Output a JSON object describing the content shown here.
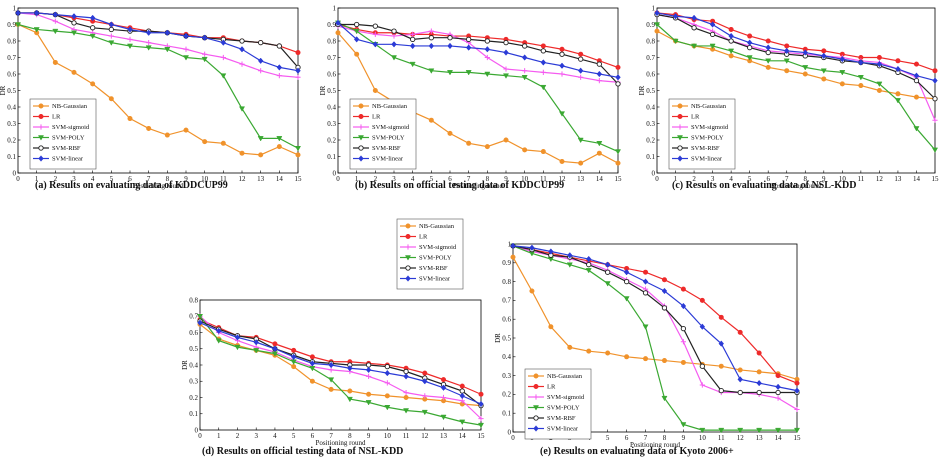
{
  "figure": {
    "colors": {
      "NB-Gaussian": "#f0922b",
      "LR": "#ee2a2a",
      "SVM-sigmoid": "#f55bf0",
      "SVM-POLY": "#3aa832",
      "SVM-RBF": "#222222",
      "SVM-linear": "#2b3bd6"
    },
    "markers": {
      "NB-Gaussian": "circle",
      "LR": "circle",
      "SVM-sigmoid": "plus",
      "SVM-POLY": "triangle-down",
      "SVM-RBF": "circle-open",
      "SVM-linear": "diamond"
    }
  },
  "chart_data": [
    {
      "type": "line",
      "caption": "(a) Results on evaluating data of KDDCUP99",
      "xlabel": "Positioning round",
      "ylabel": "DR",
      "x": [
        0,
        1,
        2,
        3,
        4,
        5,
        6,
        7,
        8,
        9,
        10,
        11,
        12,
        13,
        14,
        15
      ],
      "xlim": [
        0,
        15
      ],
      "ylim": [
        0,
        1
      ],
      "yticks": [
        "0",
        "0.1",
        "0.2",
        "0.3",
        "0.4",
        "0.5",
        "0.6",
        "0.7",
        "0.8",
        "0.9",
        "1"
      ],
      "legend": "bottom-left",
      "series": [
        {
          "name": "NB-Gaussian",
          "values": [
            0.9,
            0.85,
            0.67,
            0.61,
            0.54,
            0.45,
            0.33,
            0.27,
            0.23,
            0.26,
            0.19,
            0.18,
            0.12,
            0.11,
            0.16,
            0.11
          ]
        },
        {
          "name": "LR",
          "values": [
            0.97,
            0.97,
            0.96,
            0.94,
            0.92,
            0.9,
            0.88,
            0.86,
            0.85,
            0.84,
            0.82,
            0.82,
            0.8,
            0.79,
            0.77,
            0.73
          ]
        },
        {
          "name": "SVM-sigmoid",
          "values": [
            0.97,
            0.96,
            0.92,
            0.87,
            0.85,
            0.83,
            0.81,
            0.79,
            0.77,
            0.75,
            0.72,
            0.7,
            0.66,
            0.62,
            0.59,
            0.58
          ]
        },
        {
          "name": "SVM-POLY",
          "values": [
            0.9,
            0.87,
            0.86,
            0.85,
            0.83,
            0.79,
            0.77,
            0.76,
            0.75,
            0.7,
            0.69,
            0.59,
            0.39,
            0.21,
            0.21,
            0.15
          ]
        },
        {
          "name": "SVM-RBF",
          "values": [
            0.97,
            0.97,
            0.96,
            0.91,
            0.88,
            0.87,
            0.86,
            0.86,
            0.85,
            0.83,
            0.82,
            0.81,
            0.8,
            0.79,
            0.77,
            0.64
          ]
        },
        {
          "name": "SVM-linear",
          "values": [
            0.97,
            0.97,
            0.96,
            0.95,
            0.94,
            0.9,
            0.87,
            0.85,
            0.85,
            0.83,
            0.82,
            0.79,
            0.75,
            0.68,
            0.64,
            0.62
          ]
        }
      ]
    },
    {
      "type": "line",
      "caption": "(b) Results on official testing data of KDDCUP99",
      "xlabel": "Positioning round",
      "ylabel": "DR",
      "x": [
        0,
        1,
        2,
        3,
        4,
        5,
        6,
        7,
        8,
        9,
        10,
        11,
        12,
        13,
        14,
        15
      ],
      "xlim": [
        0,
        15
      ],
      "ylim": [
        0,
        1
      ],
      "yticks": [
        "0",
        "0.1",
        "0.2",
        "0.3",
        "0.4",
        "0.5",
        "0.6",
        "0.7",
        "0.8",
        "0.9",
        "1"
      ],
      "legend": "bottom-left",
      "series": [
        {
          "name": "NB-Gaussian",
          "values": [
            0.85,
            0.72,
            0.5,
            0.43,
            0.37,
            0.32,
            0.24,
            0.18,
            0.16,
            0.2,
            0.14,
            0.13,
            0.07,
            0.06,
            0.12,
            0.06
          ]
        },
        {
          "name": "LR",
          "values": [
            0.9,
            0.87,
            0.85,
            0.85,
            0.84,
            0.84,
            0.83,
            0.83,
            0.82,
            0.81,
            0.79,
            0.77,
            0.75,
            0.72,
            0.68,
            0.64
          ]
        },
        {
          "name": "SVM-sigmoid",
          "values": [
            0.89,
            0.86,
            0.84,
            0.83,
            0.84,
            0.86,
            0.84,
            0.79,
            0.7,
            0.63,
            0.62,
            0.61,
            0.6,
            0.58,
            0.56,
            0.55
          ]
        },
        {
          "name": "SVM-POLY",
          "values": [
            0.91,
            0.86,
            0.78,
            0.7,
            0.66,
            0.62,
            0.61,
            0.61,
            0.6,
            0.59,
            0.58,
            0.52,
            0.36,
            0.2,
            0.18,
            0.13
          ]
        },
        {
          "name": "SVM-RBF",
          "values": [
            0.9,
            0.9,
            0.89,
            0.86,
            0.81,
            0.82,
            0.82,
            0.81,
            0.8,
            0.79,
            0.77,
            0.74,
            0.72,
            0.69,
            0.66,
            0.54
          ]
        },
        {
          "name": "SVM-linear",
          "values": [
            0.91,
            0.81,
            0.78,
            0.78,
            0.77,
            0.77,
            0.77,
            0.76,
            0.75,
            0.73,
            0.7,
            0.67,
            0.65,
            0.62,
            0.6,
            0.58
          ]
        }
      ]
    },
    {
      "type": "line",
      "caption": "(c) Results on evaluating data of NSL-KDD",
      "xlabel": "Positioning round",
      "ylabel": "DR",
      "x": [
        0,
        1,
        2,
        3,
        4,
        5,
        6,
        7,
        8,
        9,
        10,
        11,
        12,
        13,
        14,
        15
      ],
      "xlim": [
        0,
        15
      ],
      "ylim": [
        0,
        1
      ],
      "yticks": [
        "0",
        "0.1",
        "0.2",
        "0.3",
        "0.4",
        "0.5",
        "0.6",
        "0.7",
        "0.8",
        "0.9",
        "1"
      ],
      "legend": "bottom-left",
      "series": [
        {
          "name": "NB-Gaussian",
          "values": [
            0.86,
            0.8,
            0.77,
            0.75,
            0.71,
            0.68,
            0.64,
            0.62,
            0.6,
            0.57,
            0.54,
            0.53,
            0.5,
            0.48,
            0.46,
            0.45
          ]
        },
        {
          "name": "LR",
          "values": [
            0.97,
            0.96,
            0.93,
            0.92,
            0.87,
            0.83,
            0.8,
            0.77,
            0.75,
            0.74,
            0.72,
            0.7,
            0.7,
            0.68,
            0.66,
            0.62
          ]
        },
        {
          "name": "SVM-sigmoid",
          "values": [
            0.96,
            0.94,
            0.9,
            0.86,
            0.8,
            0.77,
            0.74,
            0.73,
            0.72,
            0.71,
            0.7,
            0.68,
            0.67,
            0.63,
            0.58,
            0.32
          ]
        },
        {
          "name": "SVM-POLY",
          "values": [
            0.9,
            0.8,
            0.77,
            0.77,
            0.74,
            0.7,
            0.68,
            0.68,
            0.64,
            0.62,
            0.61,
            0.58,
            0.54,
            0.44,
            0.27,
            0.14
          ]
        },
        {
          "name": "SVM-RBF",
          "values": [
            0.96,
            0.94,
            0.88,
            0.84,
            0.8,
            0.76,
            0.73,
            0.72,
            0.71,
            0.7,
            0.68,
            0.67,
            0.65,
            0.61,
            0.56,
            0.45
          ]
        },
        {
          "name": "SVM-linear",
          "values": [
            0.97,
            0.95,
            0.94,
            0.9,
            0.83,
            0.79,
            0.76,
            0.74,
            0.73,
            0.71,
            0.69,
            0.67,
            0.66,
            0.63,
            0.59,
            0.56
          ]
        }
      ]
    },
    {
      "type": "line",
      "caption": "(d) Results on official testing data of NSL-KDD",
      "xlabel": "Positioning round",
      "ylabel": "DR",
      "x": [
        0,
        1,
        2,
        3,
        4,
        5,
        6,
        7,
        8,
        9,
        10,
        11,
        12,
        13,
        14,
        15
      ],
      "xlim": [
        0,
        15
      ],
      "ylim": [
        0,
        0.8
      ],
      "yticks": [
        "0",
        "0.1",
        "0.2",
        "0.3",
        "0.4",
        "0.5",
        "0.6",
        "0.7",
        "0.8"
      ],
      "legend": "top-right",
      "series": [
        {
          "name": "NB-Gaussian",
          "values": [
            0.65,
            0.56,
            0.52,
            0.49,
            0.46,
            0.39,
            0.3,
            0.25,
            0.24,
            0.22,
            0.21,
            0.2,
            0.19,
            0.18,
            0.16,
            0.15
          ]
        },
        {
          "name": "LR",
          "values": [
            0.68,
            0.63,
            0.58,
            0.57,
            0.53,
            0.49,
            0.45,
            0.42,
            0.42,
            0.41,
            0.4,
            0.38,
            0.35,
            0.31,
            0.27,
            0.22
          ]
        },
        {
          "name": "SVM-sigmoid",
          "values": [
            0.7,
            0.6,
            0.55,
            0.51,
            0.48,
            0.43,
            0.39,
            0.37,
            0.36,
            0.33,
            0.29,
            0.23,
            0.21,
            0.2,
            0.18,
            0.07
          ]
        },
        {
          "name": "SVM-POLY",
          "values": [
            0.7,
            0.55,
            0.51,
            0.49,
            0.47,
            0.42,
            0.38,
            0.31,
            0.19,
            0.17,
            0.14,
            0.12,
            0.11,
            0.08,
            0.05,
            0.03
          ]
        },
        {
          "name": "SVM-RBF",
          "values": [
            0.67,
            0.62,
            0.58,
            0.56,
            0.5,
            0.46,
            0.42,
            0.41,
            0.4,
            0.4,
            0.39,
            0.36,
            0.32,
            0.28,
            0.24,
            0.15
          ]
        },
        {
          "name": "SVM-linear",
          "values": [
            0.66,
            0.61,
            0.57,
            0.54,
            0.5,
            0.45,
            0.41,
            0.4,
            0.38,
            0.37,
            0.35,
            0.33,
            0.3,
            0.26,
            0.21,
            0.16
          ]
        }
      ]
    },
    {
      "type": "line",
      "caption": "(e) Results on evaluating data of Kyoto 2006+",
      "xlabel": "Positioning round",
      "ylabel": "DR",
      "x": [
        0,
        1,
        2,
        3,
        4,
        5,
        6,
        7,
        8,
        9,
        10,
        11,
        12,
        13,
        14,
        15
      ],
      "xlim": [
        0,
        15
      ],
      "ylim": [
        0,
        1
      ],
      "yticks": [
        "0",
        "0.1",
        "0.2",
        "0.3",
        "0.4",
        "0.5",
        "0.6",
        "0.7",
        "0.8",
        "0.9",
        "1"
      ],
      "legend": "bottom-left",
      "series": [
        {
          "name": "NB-Gaussian",
          "values": [
            0.93,
            0.75,
            0.56,
            0.45,
            0.43,
            0.42,
            0.4,
            0.39,
            0.38,
            0.37,
            0.36,
            0.35,
            0.33,
            0.32,
            0.31,
            0.28
          ]
        },
        {
          "name": "LR",
          "values": [
            0.99,
            0.97,
            0.95,
            0.93,
            0.91,
            0.89,
            0.87,
            0.85,
            0.81,
            0.76,
            0.7,
            0.61,
            0.53,
            0.42,
            0.3,
            0.26
          ]
        },
        {
          "name": "SVM-sigmoid",
          "values": [
            0.99,
            0.96,
            0.94,
            0.92,
            0.9,
            0.86,
            0.81,
            0.76,
            0.67,
            0.48,
            0.25,
            0.21,
            0.21,
            0.2,
            0.18,
            0.12
          ]
        },
        {
          "name": "SVM-POLY",
          "values": [
            0.99,
            0.95,
            0.92,
            0.89,
            0.86,
            0.79,
            0.71,
            0.56,
            0.18,
            0.04,
            0.01,
            0.01,
            0.01,
            0.01,
            0.01,
            0.01
          ]
        },
        {
          "name": "SVM-RBF",
          "values": [
            0.99,
            0.97,
            0.94,
            0.93,
            0.89,
            0.85,
            0.8,
            0.74,
            0.66,
            0.55,
            0.35,
            0.22,
            0.21,
            0.21,
            0.21,
            0.21
          ]
        },
        {
          "name": "SVM-linear",
          "values": [
            0.99,
            0.98,
            0.96,
            0.94,
            0.92,
            0.89,
            0.85,
            0.8,
            0.75,
            0.67,
            0.56,
            0.47,
            0.28,
            0.26,
            0.24,
            0.22
          ]
        }
      ]
    }
  ]
}
